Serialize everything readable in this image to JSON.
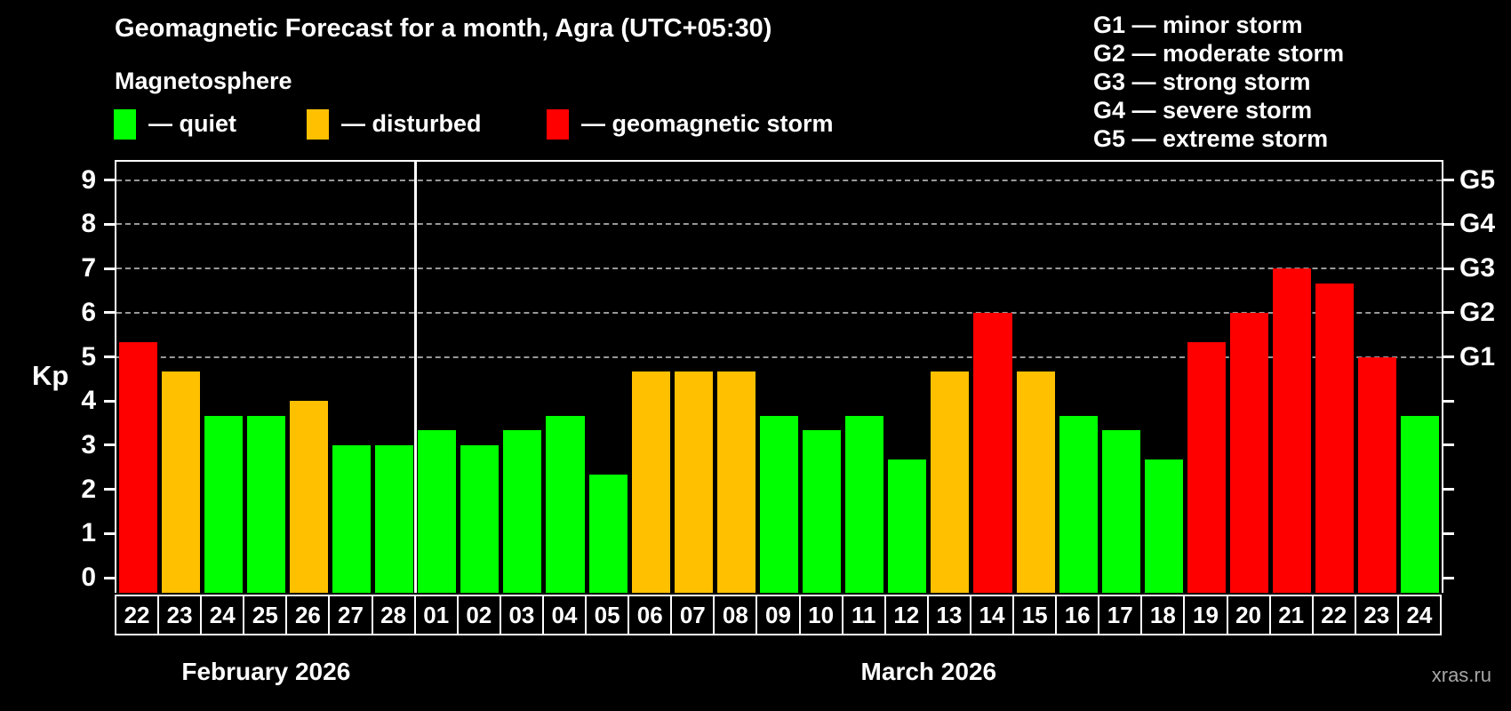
{
  "header": {
    "title": "Geomagnetic Forecast for a month, Agra (UTC+05:30)",
    "subtitle": "Magnetosphere"
  },
  "legend": {
    "items": [
      {
        "label": "— quiet",
        "level": "quiet",
        "color": "#00ff00"
      },
      {
        "label": "— disturbed",
        "level": "disturbed",
        "color": "#ffc000"
      },
      {
        "label": "— geomagnetic storm",
        "level": "storm",
        "color": "#ff0000"
      }
    ]
  },
  "g_legend": {
    "lines": [
      "G1 — minor storm",
      "G2 — moderate storm",
      "G3 — strong storm",
      "G4 — severe storm",
      "G5 — extreme storm"
    ]
  },
  "footer": {
    "watermark": "xras.ru"
  },
  "chart_data": {
    "type": "bar",
    "ylabel": "Kp",
    "ylim": [
      0,
      9.4
    ],
    "grid": "dashed horizontal at Kp 5-9",
    "y_ticks": [
      0,
      1,
      2,
      3,
      4,
      5,
      6,
      7,
      8,
      9
    ],
    "grid_kp": [
      5,
      6,
      7,
      8,
      9
    ],
    "right_axis_labels": [
      {
        "kp": 5,
        "label": "G1"
      },
      {
        "kp": 6,
        "label": "G2"
      },
      {
        "kp": 7,
        "label": "G3"
      },
      {
        "kp": 8,
        "label": "G4"
      },
      {
        "kp": 9,
        "label": "G5"
      }
    ],
    "level_colors": {
      "quiet": "#00ff00",
      "disturbed": "#ffc000",
      "storm": "#ff0000"
    },
    "months": [
      {
        "label": "February 2026",
        "days": [
          {
            "day": "22",
            "kp": 5.33,
            "level": "storm"
          },
          {
            "day": "23",
            "kp": 4.67,
            "level": "disturbed"
          },
          {
            "day": "24",
            "kp": 3.67,
            "level": "quiet"
          },
          {
            "day": "25",
            "kp": 3.67,
            "level": "quiet"
          },
          {
            "day": "26",
            "kp": 4.0,
            "level": "disturbed"
          },
          {
            "day": "27",
            "kp": 3.0,
            "level": "quiet"
          },
          {
            "day": "28",
            "kp": 3.0,
            "level": "quiet"
          }
        ]
      },
      {
        "label": "March 2026",
        "days": [
          {
            "day": "01",
            "kp": 3.33,
            "level": "quiet"
          },
          {
            "day": "02",
            "kp": 3.0,
            "level": "quiet"
          },
          {
            "day": "03",
            "kp": 3.33,
            "level": "quiet"
          },
          {
            "day": "04",
            "kp": 3.67,
            "level": "quiet"
          },
          {
            "day": "05",
            "kp": 2.33,
            "level": "quiet"
          },
          {
            "day": "06",
            "kp": 4.67,
            "level": "disturbed"
          },
          {
            "day": "07",
            "kp": 4.67,
            "level": "disturbed"
          },
          {
            "day": "08",
            "kp": 4.67,
            "level": "disturbed"
          },
          {
            "day": "09",
            "kp": 3.67,
            "level": "quiet"
          },
          {
            "day": "10",
            "kp": 3.33,
            "level": "quiet"
          },
          {
            "day": "11",
            "kp": 3.67,
            "level": "quiet"
          },
          {
            "day": "12",
            "kp": 2.67,
            "level": "quiet"
          },
          {
            "day": "13",
            "kp": 4.67,
            "level": "disturbed"
          },
          {
            "day": "14",
            "kp": 6.0,
            "level": "storm"
          },
          {
            "day": "15",
            "kp": 4.67,
            "level": "disturbed"
          },
          {
            "day": "16",
            "kp": 3.67,
            "level": "quiet"
          },
          {
            "day": "17",
            "kp": 3.33,
            "level": "quiet"
          },
          {
            "day": "18",
            "kp": 2.67,
            "level": "quiet"
          },
          {
            "day": "19",
            "kp": 5.33,
            "level": "storm"
          },
          {
            "day": "20",
            "kp": 6.0,
            "level": "storm"
          },
          {
            "day": "21",
            "kp": 7.0,
            "level": "storm"
          },
          {
            "day": "22",
            "kp": 6.67,
            "level": "storm"
          },
          {
            "day": "23",
            "kp": 5.0,
            "level": "storm"
          },
          {
            "day": "24",
            "kp": 3.67,
            "level": "quiet"
          }
        ]
      }
    ]
  }
}
